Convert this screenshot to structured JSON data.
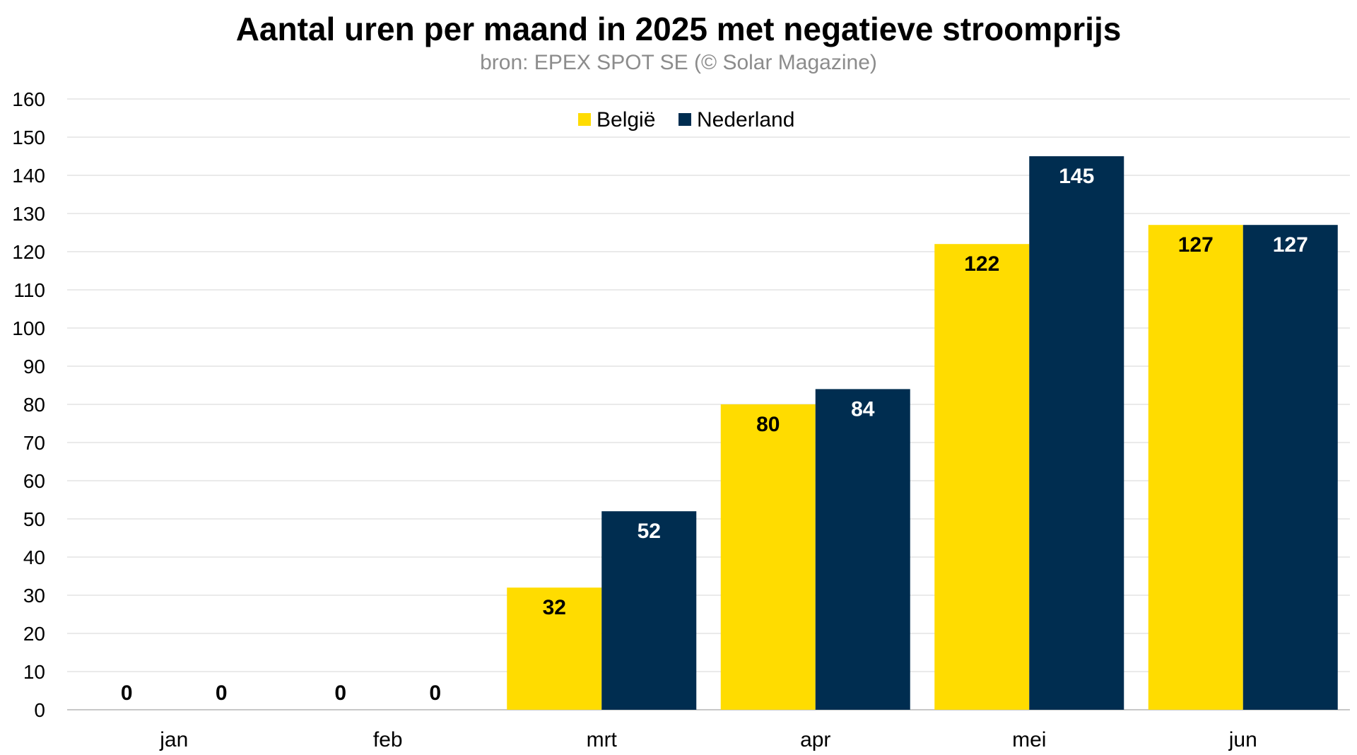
{
  "chart_data": {
    "type": "bar",
    "title": "Aantal uren per maand in 2025 met negatieve stroomprijs",
    "subtitle": "bron: EPEX SPOT SE (© Solar Magazine)",
    "categories": [
      "jan",
      "feb",
      "mrt",
      "apr",
      "mei",
      "jun"
    ],
    "series": [
      {
        "name": "België",
        "color": "#FFDC00",
        "label_color": "#000000",
        "values": [
          0,
          0,
          32,
          80,
          122,
          127
        ]
      },
      {
        "name": "Nederland",
        "color": "#002D50",
        "label_color": "#FFFFFF",
        "values": [
          0,
          0,
          52,
          84,
          145,
          127
        ]
      }
    ],
    "ylim": [
      0,
      160
    ],
    "yticks": [
      0,
      10,
      20,
      30,
      40,
      50,
      60,
      70,
      80,
      90,
      100,
      110,
      120,
      130,
      140,
      150,
      160
    ],
    "grid": true,
    "legend_position": "top-center",
    "zero_label_color": "#000000"
  }
}
